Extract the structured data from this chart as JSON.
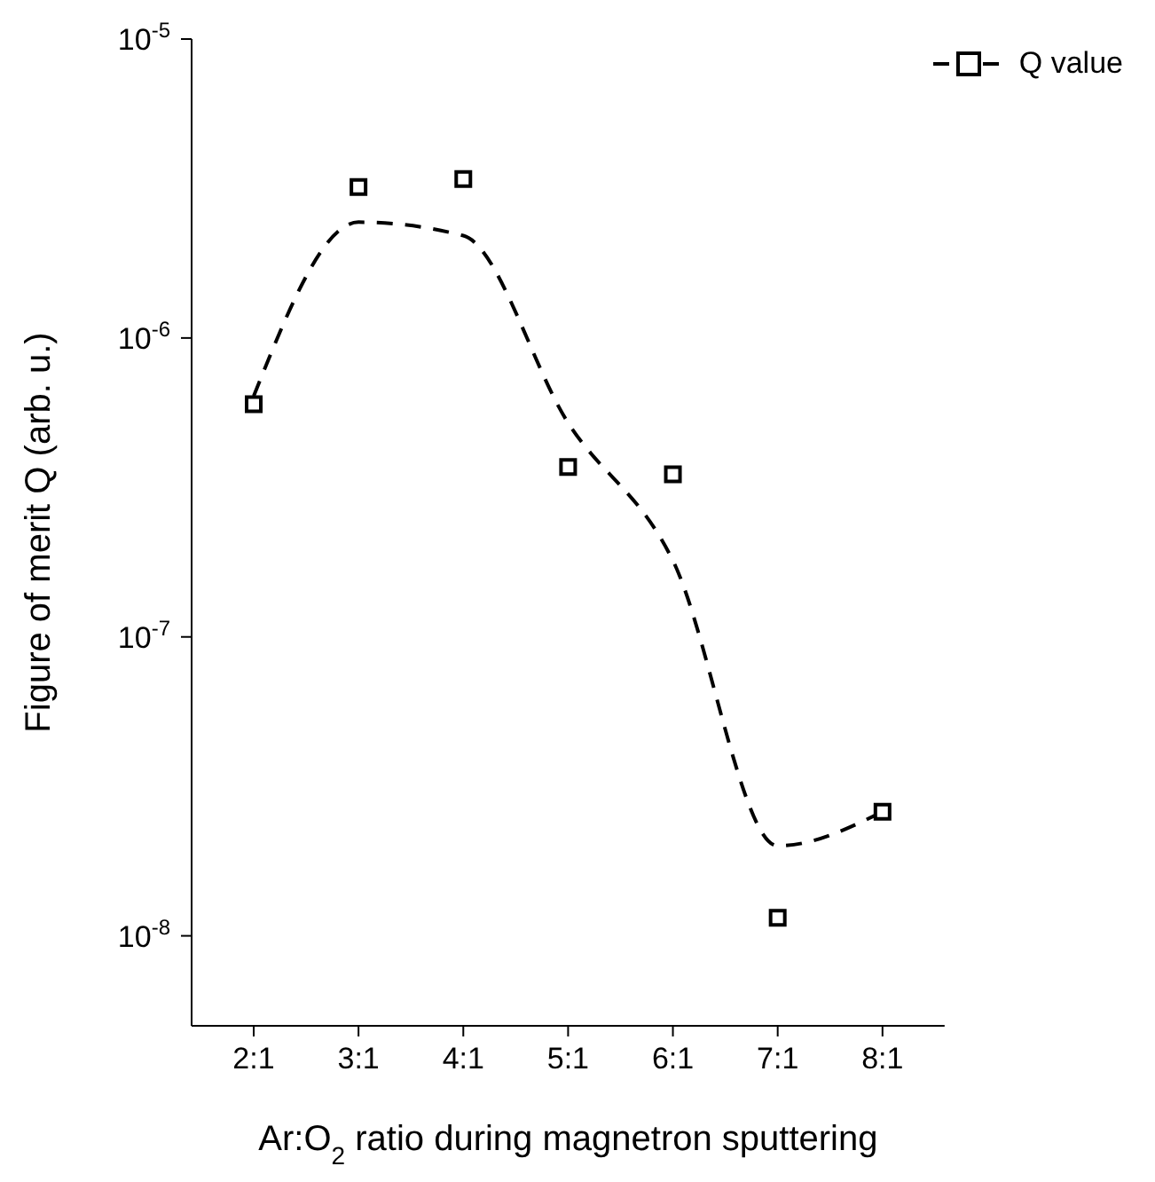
{
  "chart_data": {
    "type": "scatter",
    "xlabel": "Ar:O$_{2}$ ratio during magnetron sputtering",
    "ylabel": "Figure of merit Q (arb. u.)",
    "log": "y",
    "categories": [
      "2:1",
      "3:1",
      "4:1",
      "5:1",
      "6:1",
      "7:1",
      "8:1"
    ],
    "ylim": [
      5e-09,
      1e-05
    ],
    "yticks": [
      {
        "value": 1e-08,
        "label": "10$^{-8}$"
      },
      {
        "value": 1e-07,
        "label": "10$^{-7}$"
      },
      {
        "value": 1e-06,
        "label": "10$^{-6}$"
      },
      {
        "value": 1e-05,
        "label": "10$^{-5}$"
      }
    ],
    "legend": "top right",
    "series": [
      {
        "name": "Q value",
        "color": "#000000",
        "marker": "square",
        "values": [
          6e-07,
          3.2e-06,
          3.4e-06,
          3.7e-07,
          3.5e-07,
          1.15e-08,
          2.6e-08
        ]
      },
      {
        "type": "line",
        "color": "#000000",
        "line_style": "dashed",
        "marker": "none",
        "values": [
          6.4e-07,
          2.44e-06,
          2.2e-06,
          5.2e-07,
          1.8e-07,
          2e-08,
          2.6e-08
        ]
      }
    ]
  }
}
